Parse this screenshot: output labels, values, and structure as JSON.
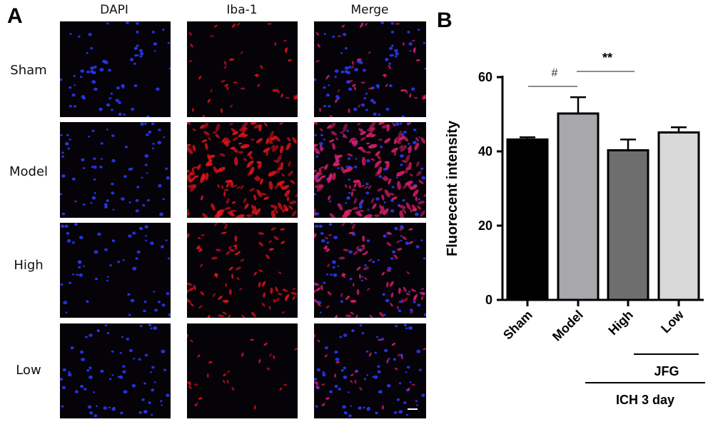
{
  "panel_a": {
    "letter": "A",
    "columns": [
      "DAPI",
      "Iba-1",
      "Merge"
    ],
    "rows": [
      "Sham",
      "Model",
      "High",
      "Low"
    ]
  },
  "panel_b": {
    "letter": "B"
  },
  "chart_data": {
    "type": "bar",
    "categories": [
      "Sham",
      "Model",
      "High",
      "Low"
    ],
    "values": [
      43.2,
      50.2,
      40.3,
      45.1
    ],
    "errors": [
      0.6,
      4.4,
      2.9,
      1.4
    ],
    "bar_colors": [
      "#000000",
      "#a8a8aa",
      "#6e6e6e",
      "#d8d8d8"
    ],
    "ylabel": "Fluorecent intensity",
    "ylim": [
      0,
      60
    ],
    "yticks": [
      0,
      20,
      40,
      60
    ],
    "significance": [
      {
        "label": "#",
        "from": 0,
        "to": 1,
        "y": 57.5
      },
      {
        "label": "**",
        "from": 1,
        "to": 2,
        "y": 61.5
      }
    ],
    "groups": [
      {
        "label": "JFG",
        "from": 2,
        "to": 3
      },
      {
        "label": "ICH 3 day",
        "from": 1,
        "to": 3
      }
    ]
  }
}
